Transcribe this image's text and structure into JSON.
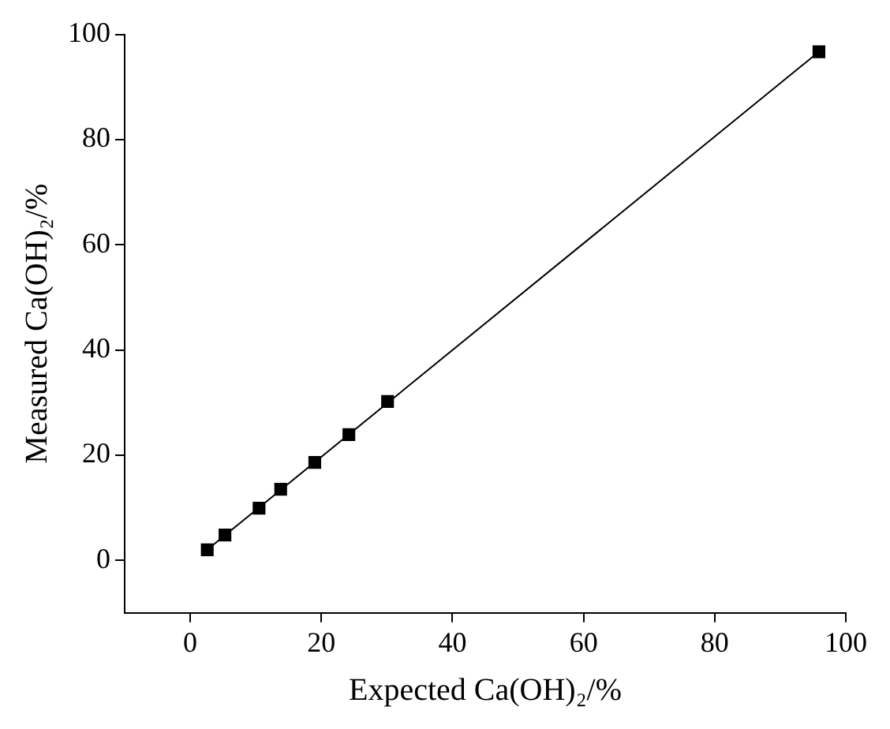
{
  "chart_data": {
    "type": "scatter",
    "xlabel": "Expected Ca(OH)₂/%",
    "ylabel": "Measured Ca(OH)₂/%",
    "xlim": [
      -10,
      100
    ],
    "xticks": [
      0,
      20,
      40,
      60,
      80,
      100
    ],
    "ylim": [
      -10,
      100
    ],
    "yticks": [
      0,
      20,
      40,
      60,
      80,
      100
    ],
    "grid": false,
    "legend": false,
    "marker": "square",
    "series": [
      {
        "color": "#000000",
        "x": [
          2.6,
          5.3,
          10.5,
          13.8,
          19.0,
          24.2,
          30.1,
          95.9
        ],
        "values": [
          2.0,
          4.8,
          9.9,
          13.5,
          18.6,
          23.9,
          30.2,
          96.7
        ]
      },
      {
        "type": "line",
        "color": "#000000",
        "marker": "none",
        "line_style": "solid",
        "x": [
          2.6,
          95.9
        ],
        "values": [
          2.0,
          96.7
        ]
      }
    ]
  }
}
